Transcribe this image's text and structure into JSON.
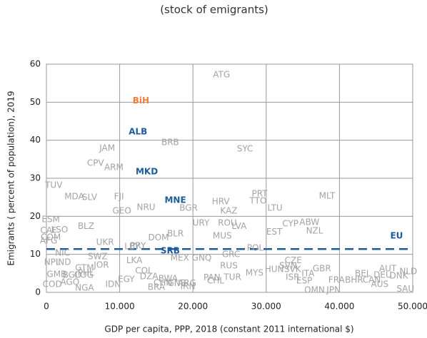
{
  "chart_data": {
    "type": "scatter",
    "title": "(stock of emigrants)",
    "x_label": "GDP per capita, PPP, 2018 (constant 2011 international $)",
    "y_label": "Emigrants ( percent of population), 2019",
    "xlim": [
      0,
      50000
    ],
    "ylim": [
      0,
      60
    ],
    "xticks": [
      0,
      {
        "value": 10000,
        "label": "10.000"
      },
      {
        "value": 20000,
        "label": "20.000"
      },
      {
        "value": 30000,
        "label": "30.000"
      },
      {
        "value": 40000,
        "label": "40.000"
      },
      {
        "value": 50000,
        "label": "50.000"
      }
    ],
    "yticks": [
      0,
      10,
      20,
      30,
      40,
      50,
      60
    ],
    "grid": true,
    "reference_line": {
      "value": 11.4,
      "color": "#1f5c99",
      "dashed": true
    },
    "series": [
      {
        "color": "#a3a3a3",
        "bold": false,
        "labels": [
          "ATG",
          "BRB",
          "SYC",
          "JAM",
          "CPV",
          "ARM",
          "TUV",
          "MDA",
          "SLV",
          "FJI",
          "PRT",
          "TTO",
          "MLT",
          "HRV",
          "BGR",
          "GEO",
          "NRU",
          "KAZ",
          "LTU",
          "ESM",
          "CAF",
          "LSO",
          "COM",
          "AFG",
          "BLZ",
          "URY",
          "ROU",
          "LVA",
          "CYP",
          "ABW",
          "NZL",
          "EST",
          "UKR",
          "LBY",
          "PRY",
          "DOM",
          "BLR",
          "MUS",
          "NIC",
          "SWZ",
          "MEX",
          "GNQ",
          "GRC",
          "POL",
          "CZE",
          "NPL",
          "IND",
          "JOR",
          "GTM",
          "LKA",
          "RUS",
          "HUN",
          "SVK",
          "SVN",
          "GBR",
          "AUT",
          "NLD",
          "PHL",
          "COL",
          "MYS",
          "ITA",
          "DEU",
          "BEL",
          "DNK",
          "GMB",
          "BGD",
          "COG",
          "DZA",
          "BWA",
          "PAN",
          "TUR",
          "CHL",
          "ISR",
          "FRA",
          "BHR",
          "CAN",
          "EGY",
          "GNB",
          "ARG",
          "AGO",
          "IDN",
          "BRA",
          "IRN",
          "ESP",
          "AUS",
          "COD",
          "NGA",
          "CHN",
          "OMN",
          "JPN",
          "SAU"
        ],
        "x": [
          23900,
          16900,
          27100,
          8300,
          6700,
          9200,
          1000,
          3800,
          5900,
          9900,
          29100,
          28900,
          38300,
          23800,
          19400,
          10300,
          13600,
          24900,
          31200,
          600,
          300,
          1800,
          600,
          300,
          5400,
          21100,
          24700,
          26300,
          33300,
          35900,
          36600,
          31100,
          8000,
          11700,
          12500,
          15300,
          17600,
          24000,
          2200,
          7000,
          18200,
          21200,
          25200,
          28500,
          33700,
          800,
          2300,
          7500,
          5200,
          12000,
          24900,
          31100,
          33600,
          33000,
          37600,
          46600,
          49400,
          5400,
          13300,
          28400,
          35700,
          45900,
          43200,
          48100,
          1400,
          3500,
          5100,
          14000,
          16600,
          22600,
          25400,
          23100,
          33600,
          39600,
          42000,
          44400,
          10900,
          17800,
          19200,
          3200,
          9100,
          15000,
          19300,
          35200,
          45500,
          800,
          5200,
          15900,
          36600,
          39200,
          49000
        ],
        "values": [
          57.2,
          39.4,
          37.7,
          37.9,
          33.9,
          32.8,
          28.1,
          25.1,
          24.9,
          25.1,
          25.9,
          24.0,
          25.3,
          23.8,
          22.1,
          21.4,
          22.3,
          21.4,
          22.1,
          19.1,
          16.2,
          16.4,
          14.4,
          13.5,
          17.3,
          18.2,
          18.2,
          17.3,
          18.0,
          18.4,
          16.1,
          15.8,
          13.1,
          12.0,
          12.2,
          14.3,
          15.4,
          14.8,
          10.3,
          9.4,
          9.0,
          9.0,
          9.9,
          11.6,
          8.3,
          7.9,
          7.9,
          7.1,
          6.4,
          8.3,
          6.9,
          6.0,
          6.0,
          6.9,
          6.2,
          6.2,
          5.4,
          5.1,
          5.6,
          5.1,
          4.9,
          4.5,
          4.9,
          4.3,
          4.7,
          4.5,
          4.5,
          4.1,
          3.6,
          3.8,
          3.9,
          3.0,
          3.9,
          3.2,
          3.2,
          3.2,
          3.4,
          2.3,
          2.3,
          2.6,
          2.1,
          1.3,
          1.5,
          3.0,
          2.1,
          2.1,
          1.1,
          2.4,
          0.6,
          0.6,
          0.8
        ]
      },
      {
        "color": "#f07e3a",
        "bold": true,
        "labels": [
          "BiH"
        ],
        "x": [
          12900
        ],
        "values": [
          50.3
        ]
      },
      {
        "color": "#1f5c99",
        "bold": true,
        "labels": [
          "ALB",
          "MKD",
          "MNE",
          "SRB",
          "EU"
        ],
        "x": [
          12500,
          13700,
          17600,
          16900,
          47800
        ],
        "values": [
          42.2,
          31.7,
          24.2,
          10.9,
          14.8
        ]
      }
    ]
  }
}
